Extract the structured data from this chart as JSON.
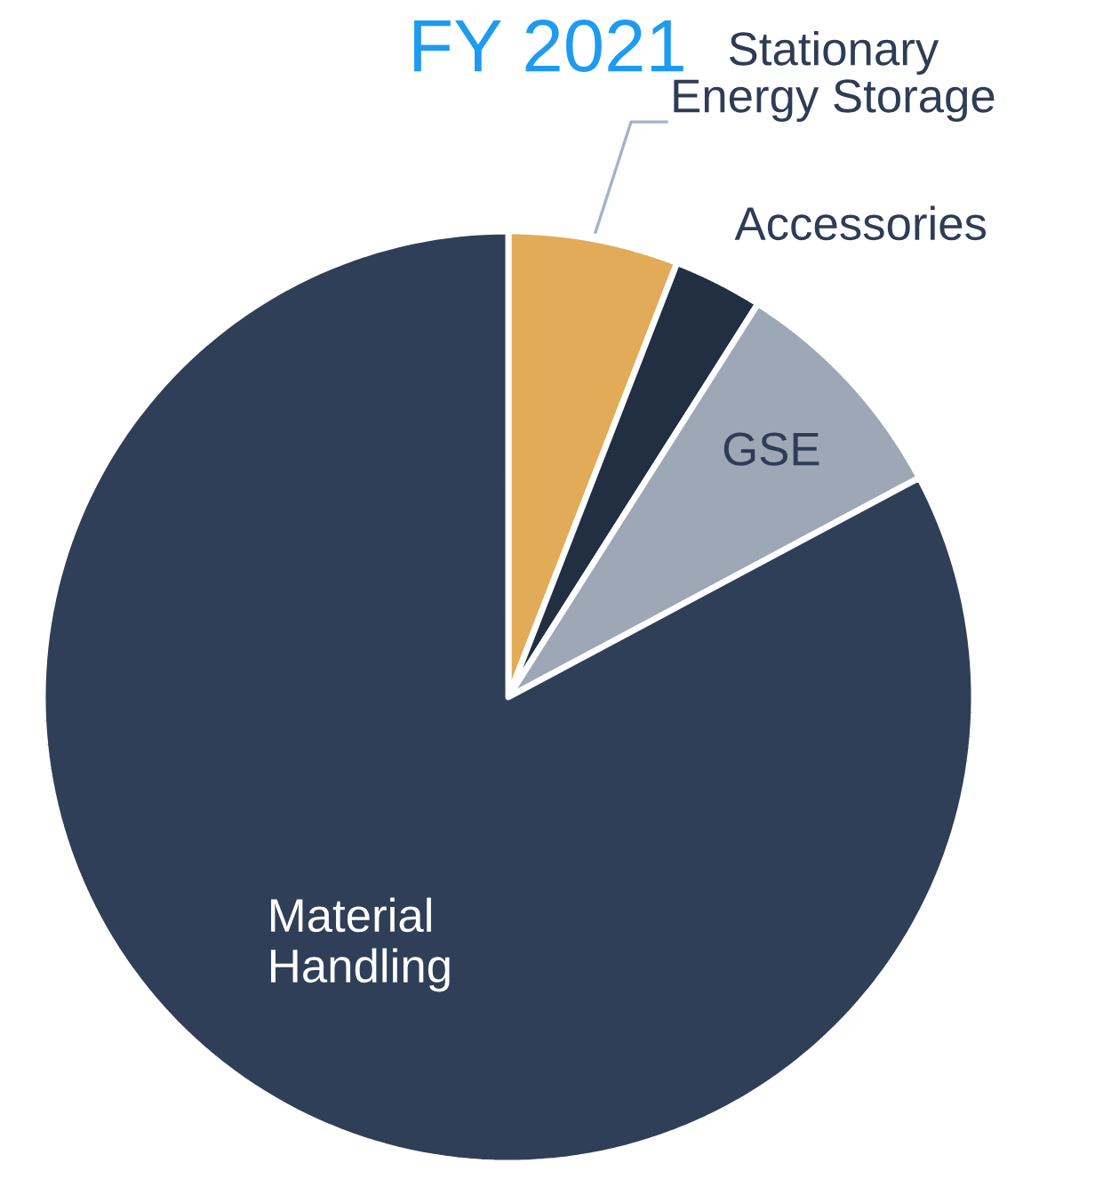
{
  "chart_data": {
    "type": "pie",
    "title": "FY 2021",
    "categories": [
      "Stationary\nEnergy Storage",
      "Accessories",
      "GSE",
      "Material\nHandling"
    ],
    "values": [
      5.9,
      3.1,
      8.2,
      82.8
    ],
    "colors": [
      "#e2ab58",
      "#222e42",
      "#9ea7b5",
      "#303f58"
    ]
  }
}
